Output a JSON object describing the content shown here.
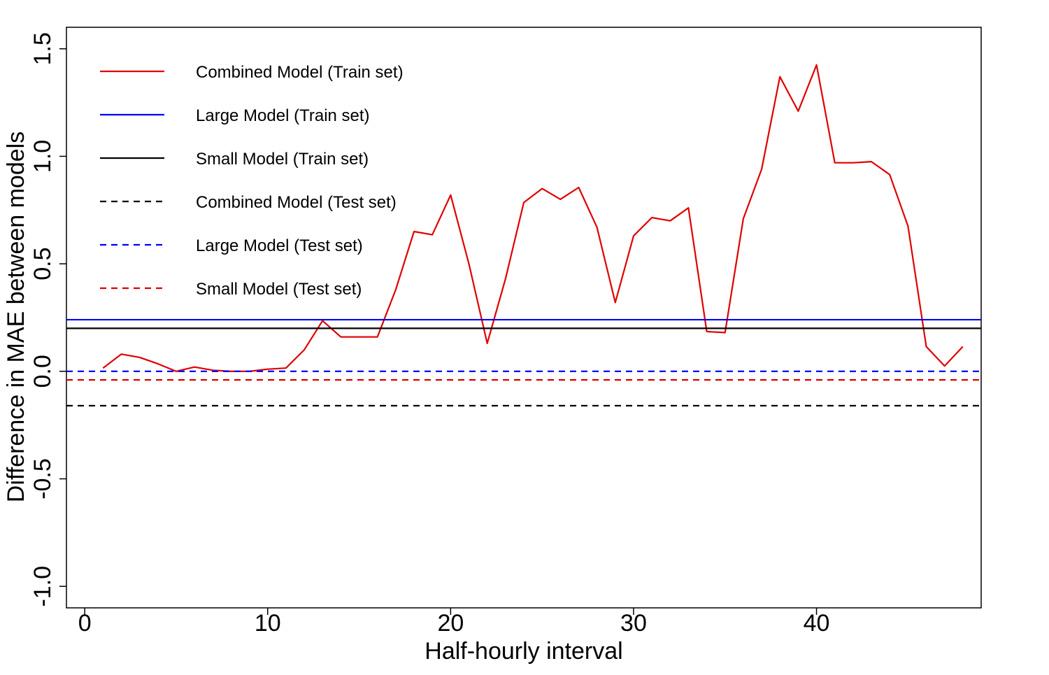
{
  "chart_data": {
    "type": "line",
    "title": "",
    "xlabel": "Half-hourly interval",
    "ylabel": "Difference in MAE between models",
    "xlim": [
      -1,
      49
    ],
    "ylim": [
      -1.1,
      1.6
    ],
    "xticks": [
      0,
      10,
      20,
      30,
      40
    ],
    "yticks": [
      -1.0,
      -0.5,
      0.0,
      0.5,
      1.0,
      1.5
    ],
    "xtick_labels": [
      "0",
      "10",
      "20",
      "30",
      "40"
    ],
    "ytick_labels": [
      "-1.0",
      "-0.5",
      "0.0",
      "0.5",
      "1.0",
      "1.5"
    ],
    "grid": false,
    "legend_position": "top-left",
    "series": [
      {
        "name": "Combined Model (Train set)",
        "color": "#e00000",
        "style": "solid",
        "x": [
          1,
          2,
          3,
          4,
          5,
          6,
          7,
          8,
          9,
          10,
          11,
          12,
          13,
          14,
          15,
          16,
          17,
          18,
          19,
          20,
          21,
          22,
          23,
          24,
          25,
          26,
          27,
          28,
          29,
          30,
          31,
          32,
          33,
          34,
          35,
          36,
          37,
          38,
          39,
          40,
          41,
          42,
          43,
          44,
          45,
          46,
          47,
          48
        ],
        "values": [
          0.015,
          0.08,
          0.065,
          0.035,
          0.0,
          0.02,
          0.005,
          0.0,
          0.0,
          0.01,
          0.015,
          0.1,
          0.235,
          0.16,
          0.16,
          0.16,
          0.38,
          0.65,
          0.635,
          0.82,
          0.5,
          0.13,
          0.43,
          0.785,
          0.85,
          0.8,
          0.855,
          0.67,
          0.32,
          0.63,
          0.715,
          0.7,
          0.76,
          0.185,
          0.18,
          0.71,
          0.94,
          1.37,
          1.21,
          1.425,
          0.97,
          0.97,
          0.975,
          0.915,
          0.675,
          0.115,
          0.025,
          0.115
        ]
      },
      {
        "name": "Large Model (Train set)",
        "color": "#0000ff",
        "style": "solid",
        "value": 0.24
      },
      {
        "name": "Small Model (Train set)",
        "color": "#000000",
        "style": "solid",
        "value": 0.2
      },
      {
        "name": "Combined Model (Test set)",
        "color": "#000000",
        "style": "dashed",
        "value": -0.16
      },
      {
        "name": "Large Model (Test set)",
        "color": "#0000ff",
        "style": "dashed",
        "value": 0.0
      },
      {
        "name": "Small Model (Test set)",
        "color": "#e00000",
        "style": "dashed",
        "value": -0.04
      }
    ]
  }
}
